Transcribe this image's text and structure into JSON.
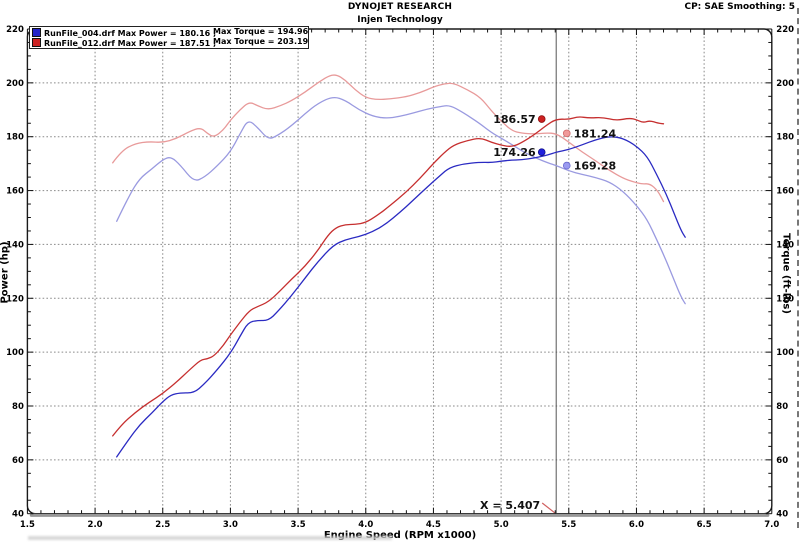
{
  "header": {
    "title": "DYNOJET RESEARCH",
    "subtitle": "Injen Technology",
    "corner_note": "CP: SAE  Smoothing: 5"
  },
  "legend": {
    "runs": [
      {
        "file": "RunFile_004.drf",
        "power_text": "Max Power = 180.16 ;",
        "torque_text": "Max Torque = 194.96",
        "color": "#2424c8"
      },
      {
        "file": "RunFile_012.drf",
        "power_text": "Max Power = 187.51 ;",
        "torque_text": "Max Torque = 203.19",
        "color": "#cc2222"
      }
    ]
  },
  "cursor": {
    "rpm": 5.407,
    "label": "X = 5.407",
    "line_color": "#555555",
    "pointer_color": "#d06060"
  },
  "markers": [
    {
      "label": "186.57",
      "value": 186.57,
      "rpm": 5.3,
      "side": "left",
      "color": "#cc2020",
      "edge": "#8d0f0f"
    },
    {
      "label": "181.24",
      "value": 181.24,
      "rpm": 5.485,
      "side": "right",
      "color": "#f09a9a",
      "edge": "#d06a6a"
    },
    {
      "label": "174.26",
      "value": 174.26,
      "rpm": 5.3,
      "side": "left",
      "color": "#2020dd",
      "edge": "#101088"
    },
    {
      "label": "169.28",
      "value": 169.28,
      "rpm": 5.485,
      "side": "right",
      "color": "#9a9af0",
      "edge": "#6a6ad0"
    }
  ],
  "chart_data": {
    "type": "line",
    "title": "",
    "xlabel": "Engine Speed (RPM x1000)",
    "ylabel_left": "Power (hp)",
    "ylabel_right": "Torque (ft-lbs)",
    "x_range": [
      1.5,
      7.0
    ],
    "x_major": 0.5,
    "x_minor": 0.1,
    "y_range": [
      40,
      220
    ],
    "y_major": 20,
    "y_minor": 5,
    "grid": "dashed",
    "grid_color": "#8a8a8a",
    "frame_color": "#1a1a1a",
    "legend_position": "top-left",
    "series": [
      {
        "name": "torque_012",
        "axis": "right",
        "color": "#e89a9a",
        "width": 1.3,
        "points": [
          [
            2.13,
            170.3
          ],
          [
            2.2,
            175.0
          ],
          [
            2.3,
            177.5
          ],
          [
            2.4,
            178.2
          ],
          [
            2.5,
            177.8
          ],
          [
            2.6,
            179.3
          ],
          [
            2.7,
            182.0
          ],
          [
            2.78,
            183.4
          ],
          [
            2.83,
            181.2
          ],
          [
            2.88,
            179.8
          ],
          [
            2.95,
            182.6
          ],
          [
            3.0,
            186.2
          ],
          [
            3.07,
            190.0
          ],
          [
            3.14,
            193.0
          ],
          [
            3.2,
            191.5
          ],
          [
            3.28,
            190.0
          ],
          [
            3.37,
            191.5
          ],
          [
            3.45,
            193.3
          ],
          [
            3.55,
            196.5
          ],
          [
            3.65,
            200.2
          ],
          [
            3.72,
            202.4
          ],
          [
            3.78,
            203.19
          ],
          [
            3.85,
            201.0
          ],
          [
            3.92,
            197.5
          ],
          [
            4.0,
            194.5
          ],
          [
            4.08,
            193.8
          ],
          [
            4.18,
            194.0
          ],
          [
            4.3,
            194.8
          ],
          [
            4.4,
            196.3
          ],
          [
            4.5,
            198.5
          ],
          [
            4.58,
            199.7
          ],
          [
            4.65,
            199.9
          ],
          [
            4.75,
            197.5
          ],
          [
            4.85,
            194.5
          ],
          [
            4.93,
            189.5
          ],
          [
            5.0,
            185.8
          ],
          [
            5.08,
            182.2
          ],
          [
            5.15,
            181.3
          ],
          [
            5.25,
            181.0
          ],
          [
            5.33,
            181.4
          ],
          [
            5.407,
            181.24
          ],
          [
            5.5,
            178.0
          ],
          [
            5.6,
            174.3
          ],
          [
            5.7,
            171.0
          ],
          [
            5.8,
            167.5
          ],
          [
            5.9,
            164.6
          ],
          [
            5.98,
            163.2
          ],
          [
            6.04,
            162.4
          ],
          [
            6.1,
            162.6
          ],
          [
            6.16,
            159.8
          ],
          [
            6.2,
            155.9
          ]
        ]
      },
      {
        "name": "torque_004",
        "axis": "right",
        "color": "#9a9ae0",
        "width": 1.3,
        "points": [
          [
            2.16,
            148.6
          ],
          [
            2.25,
            158.0
          ],
          [
            2.33,
            164.5
          ],
          [
            2.42,
            168.0
          ],
          [
            2.5,
            171.5
          ],
          [
            2.56,
            172.6
          ],
          [
            2.63,
            169.5
          ],
          [
            2.73,
            163.2
          ],
          [
            2.81,
            165.0
          ],
          [
            2.9,
            169.0
          ],
          [
            3.0,
            174.4
          ],
          [
            3.07,
            181.0
          ],
          [
            3.13,
            186.4
          ],
          [
            3.2,
            183.5
          ],
          [
            3.28,
            178.9
          ],
          [
            3.35,
            180.5
          ],
          [
            3.45,
            184.0
          ],
          [
            3.55,
            188.5
          ],
          [
            3.65,
            192.5
          ],
          [
            3.76,
            194.96
          ],
          [
            3.85,
            193.5
          ],
          [
            3.95,
            190.0
          ],
          [
            4.05,
            187.6
          ],
          [
            4.15,
            186.8
          ],
          [
            4.25,
            187.5
          ],
          [
            4.35,
            188.8
          ],
          [
            4.45,
            190.2
          ],
          [
            4.55,
            191.2
          ],
          [
            4.62,
            191.7
          ],
          [
            4.72,
            189.0
          ],
          [
            4.84,
            185.0
          ],
          [
            4.93,
            181.5
          ],
          [
            5.0,
            179.5
          ],
          [
            5.07,
            177.4
          ],
          [
            5.15,
            174.8
          ],
          [
            5.25,
            172.2
          ],
          [
            5.35,
            170.2
          ],
          [
            5.407,
            169.28
          ],
          [
            5.5,
            167.3
          ],
          [
            5.6,
            166.0
          ],
          [
            5.7,
            164.8
          ],
          [
            5.8,
            163.2
          ],
          [
            5.9,
            159.8
          ],
          [
            6.0,
            154.5
          ],
          [
            6.08,
            149.2
          ],
          [
            6.15,
            141.7
          ],
          [
            6.22,
            134.0
          ],
          [
            6.28,
            126.5
          ],
          [
            6.33,
            120.5
          ],
          [
            6.36,
            118.0
          ]
        ]
      },
      {
        "name": "power_012",
        "axis": "left",
        "color": "#c62f2f",
        "width": 1.3,
        "points": [
          [
            2.13,
            68.9
          ],
          [
            2.2,
            73.3
          ],
          [
            2.3,
            77.7
          ],
          [
            2.4,
            81.4
          ],
          [
            2.5,
            84.6
          ],
          [
            2.6,
            88.8
          ],
          [
            2.7,
            93.5
          ],
          [
            2.78,
            97.1
          ],
          [
            2.83,
            97.5
          ],
          [
            2.88,
            98.6
          ],
          [
            2.95,
            102.6
          ],
          [
            3.0,
            106.4
          ],
          [
            3.07,
            111.1
          ],
          [
            3.14,
            115.4
          ],
          [
            3.2,
            116.9
          ],
          [
            3.28,
            118.6
          ],
          [
            3.37,
            122.9
          ],
          [
            3.45,
            127.0
          ],
          [
            3.55,
            131.8
          ],
          [
            3.65,
            138.0
          ],
          [
            3.72,
            143.4
          ],
          [
            3.78,
            146.3
          ],
          [
            3.85,
            147.4
          ],
          [
            3.92,
            147.4
          ],
          [
            4.0,
            148.1
          ],
          [
            4.08,
            150.6
          ],
          [
            4.18,
            154.4
          ],
          [
            4.3,
            159.5
          ],
          [
            4.4,
            164.5
          ],
          [
            4.5,
            170.1
          ],
          [
            4.58,
            174.1
          ],
          [
            4.65,
            176.9
          ],
          [
            4.75,
            178.6
          ],
          [
            4.85,
            179.6
          ],
          [
            4.93,
            177.9
          ],
          [
            5.0,
            176.8
          ],
          [
            5.08,
            176.2
          ],
          [
            5.15,
            177.7
          ],
          [
            5.25,
            180.9
          ],
          [
            5.33,
            184.1
          ],
          [
            5.407,
            186.57
          ],
          [
            5.5,
            186.4
          ],
          [
            5.57,
            187.51
          ],
          [
            5.65,
            186.9
          ],
          [
            5.75,
            187.2
          ],
          [
            5.85,
            186.0
          ],
          [
            5.95,
            186.9
          ],
          [
            6.0,
            186.3
          ],
          [
            6.05,
            185.2
          ],
          [
            6.1,
            186.0
          ],
          [
            6.16,
            185.0
          ],
          [
            6.2,
            184.8
          ]
        ]
      },
      {
        "name": "power_004",
        "axis": "left",
        "color": "#2a2ac2",
        "width": 1.3,
        "points": [
          [
            2.16,
            61.1
          ],
          [
            2.25,
            67.7
          ],
          [
            2.33,
            73.0
          ],
          [
            2.42,
            77.4
          ],
          [
            2.5,
            81.6
          ],
          [
            2.56,
            84.1
          ],
          [
            2.63,
            84.9
          ],
          [
            2.73,
            84.8
          ],
          [
            2.81,
            88.3
          ],
          [
            2.9,
            93.3
          ],
          [
            3.0,
            99.6
          ],
          [
            3.07,
            105.8
          ],
          [
            3.13,
            111.0
          ],
          [
            3.2,
            111.8
          ],
          [
            3.28,
            111.7
          ],
          [
            3.35,
            115.1
          ],
          [
            3.45,
            120.9
          ],
          [
            3.55,
            127.4
          ],
          [
            3.65,
            133.8
          ],
          [
            3.76,
            139.7
          ],
          [
            3.85,
            141.8
          ],
          [
            3.95,
            142.9
          ],
          [
            4.05,
            144.7
          ],
          [
            4.15,
            147.6
          ],
          [
            4.25,
            151.8
          ],
          [
            4.35,
            156.4
          ],
          [
            4.45,
            161.1
          ],
          [
            4.55,
            165.6
          ],
          [
            4.62,
            168.6
          ],
          [
            4.72,
            169.9
          ],
          [
            4.84,
            170.5
          ],
          [
            4.93,
            170.4
          ],
          [
            5.0,
            170.9
          ],
          [
            5.07,
            171.3
          ],
          [
            5.15,
            171.4
          ],
          [
            5.25,
            172.1
          ],
          [
            5.35,
            173.3
          ],
          [
            5.407,
            174.26
          ],
          [
            5.5,
            175.2
          ],
          [
            5.6,
            177.0
          ],
          [
            5.7,
            178.9
          ],
          [
            5.8,
            180.16
          ],
          [
            5.9,
            179.5
          ],
          [
            6.0,
            176.5
          ],
          [
            6.08,
            172.7
          ],
          [
            6.15,
            165.9
          ],
          [
            6.22,
            158.7
          ],
          [
            6.28,
            151.3
          ],
          [
            6.33,
            145.2
          ],
          [
            6.36,
            142.7
          ]
        ]
      }
    ]
  }
}
